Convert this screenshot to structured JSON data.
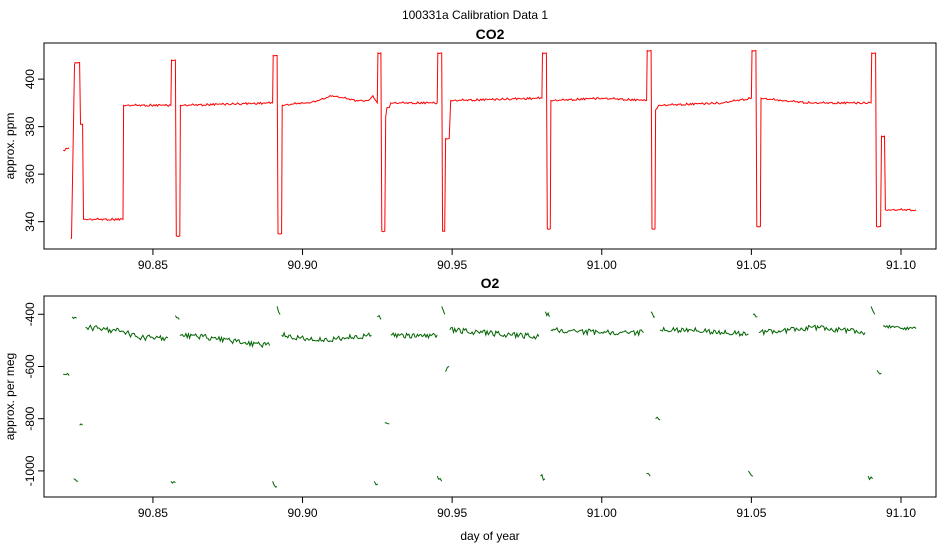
{
  "figure_title": "100331a   Calibration Data 1",
  "chart_data": [
    {
      "type": "line",
      "title": "CO2",
      "xlabel": "",
      "ylabel": "approx. ppm",
      "xlim": [
        90.8136,
        91.1117
      ],
      "ylim": [
        328.5,
        415.2
      ],
      "x_ticks": [
        90.85,
        90.9,
        90.95,
        91.0,
        91.05,
        91.1
      ],
      "x_tick_labels": [
        "90.85",
        "90.90",
        "90.95",
        "91.00",
        "91.05",
        "91.10"
      ],
      "y_ticks": [
        340,
        360,
        380,
        400
      ],
      "y_tick_labels": [
        "340",
        "360",
        "380",
        "400"
      ],
      "series_color": "#ff0000",
      "grid": false,
      "series": [
        {
          "segments": [
            {
              "x": [
                90.82,
                90.822
              ],
              "y": [
                370,
                371
              ]
            },
            {
              "x": [
                90.8225,
                90.8228,
                90.8238,
                90.824,
                90.8255,
                90.8258,
                90.8265,
                90.8268,
                90.8272,
                90.8275,
                90.84,
                90.8402,
                90.856,
                90.8562,
                90.8575,
                90.8578,
                90.859,
                90.8592,
                90.89,
                90.8902,
                90.8915,
                90.8918,
                90.893,
                90.8932,
                90.9,
                90.902,
                90.905,
                90.91,
                90.918,
                90.922,
                90.9235,
                90.925,
                90.9252,
                90.9262,
                90.9265,
                90.9275,
                90.9278,
                90.9282,
                90.929,
                90.9295,
                90.945,
                90.9452,
                90.9465,
                90.9468,
                90.9475,
                90.9478,
                90.949,
                90.9495,
                90.98,
                90.9802,
                90.9815,
                90.9818,
                90.9828,
                90.983,
                91.0,
                91.015,
                91.0152,
                91.0165,
                91.0168,
                91.0178,
                91.018,
                91.019,
                91.0195,
                91.04,
                91.05,
                91.0502,
                91.0515,
                91.0518,
                91.053,
                91.0532,
                91.06,
                91.07,
                91.07,
                91.09,
                91.0902,
                91.0915,
                91.0918,
                91.0932,
                91.0935,
                91.0945,
                91.0948,
                91.096,
                91.105
              ],
              "y": [
                333,
                333,
                406,
                407,
                407,
                381,
                381,
                341,
                341,
                341,
                341,
                389,
                389,
                408,
                408,
                334,
                334,
                389,
                390,
                410,
                410,
                335,
                335,
                389,
                390,
                390,
                391,
                393,
                391,
                391,
                393,
                390,
                411,
                411,
                336,
                336,
                384,
                388,
                388,
                390,
                390,
                411,
                411,
                336,
                336,
                375,
                375,
                391,
                392,
                411,
                411,
                337,
                337,
                391,
                392,
                391,
                412,
                412,
                337,
                337,
                387,
                389,
                389,
                390,
                392,
                412,
                412,
                338,
                338,
                392,
                391,
                390,
                390,
                390,
                411,
                411,
                338,
                338,
                376,
                376,
                345,
                345,
                345
              ]
            }
          ]
        }
      ]
    },
    {
      "type": "line",
      "title": "O2",
      "xlabel": "day of year",
      "ylabel": "approx. per meg",
      "xlim": [
        90.8136,
        91.1117
      ],
      "ylim": [
        -1100,
        -330
      ],
      "x_ticks": [
        90.85,
        90.9,
        90.95,
        91.0,
        91.05,
        91.1
      ],
      "x_tick_labels": [
        "90.85",
        "90.90",
        "90.95",
        "91.00",
        "91.05",
        "91.10"
      ],
      "y_ticks": [
        -1000,
        -800,
        -600,
        -400
      ],
      "y_tick_labels": [
        "-1000",
        "-800",
        "-600",
        "-400"
      ],
      "series_color": "#006400",
      "grid": false,
      "series": [
        {
          "segments": [
            {
              "x": [
                90.82,
                90.822
              ],
              "y": [
                -630,
                -635
              ]
            },
            {
              "x": [
                90.823,
                90.8245
              ],
              "y": [
                -410,
                -415
              ]
            },
            {
              "x": [
                90.8235,
                90.825
              ],
              "y": [
                -1030,
                -1040
              ]
            },
            {
              "x": [
                90.8255,
                90.8265
              ],
              "y": [
                -825,
                -825
              ]
            },
            {
              "x": [
                90.8275,
                90.84,
                90.845,
                90.855
              ],
              "y": [
                -450,
                -465,
                -490,
                -490
              ]
            },
            {
              "x": [
                90.856,
                90.8575
              ],
              "y": [
                -1040,
                -1045
              ]
            },
            {
              "x": [
                90.8575,
                90.8588
              ],
              "y": [
                -405,
                -420
              ]
            },
            {
              "x": [
                90.859,
                90.87,
                90.88,
                90.889
              ],
              "y": [
                -480,
                -490,
                -510,
                -520
              ]
            },
            {
              "x": [
                90.89,
                90.8915
              ],
              "y": [
                -1040,
                -1060
              ]
            },
            {
              "x": [
                90.8915,
                90.8925
              ],
              "y": [
                -370,
                -400
              ]
            },
            {
              "x": [
                90.893,
                90.905,
                90.915,
                90.923
              ],
              "y": [
                -480,
                -500,
                -490,
                -480
              ]
            },
            {
              "x": [
                90.924,
                90.9252
              ],
              "y": [
                -1040,
                -1050
              ]
            },
            {
              "x": [
                90.925,
                90.9262
              ],
              "y": [
                -410,
                -420
              ]
            },
            {
              "x": [
                90.9275,
                90.929
              ],
              "y": [
                -815,
                -820
              ]
            },
            {
              "x": [
                90.9295,
                90.94,
                90.945
              ],
              "y": [
                -480,
                -485,
                -480
              ]
            },
            {
              "x": [
                90.945,
                90.9465
              ],
              "y": [
                -1020,
                -1040
              ]
            },
            {
              "x": [
                90.9465,
                90.9475
              ],
              "y": [
                -370,
                -400
              ]
            },
            {
              "x": [
                90.9478,
                90.949
              ],
              "y": [
                -620,
                -600
              ]
            },
            {
              "x": [
                90.9492,
                90.96,
                90.97,
                90.979
              ],
              "y": [
                -460,
                -470,
                -480,
                -485
              ]
            },
            {
              "x": [
                90.9795,
                90.981
              ],
              "y": [
                -1020,
                -1030
              ]
            },
            {
              "x": [
                90.9812,
                90.9825
              ],
              "y": [
                -390,
                -410
              ]
            },
            {
              "x": [
                90.983,
                91.0,
                91.014
              ],
              "y": [
                -460,
                -470,
                -470
              ]
            },
            {
              "x": [
                91.015,
                91.0162
              ],
              "y": [
                -1010,
                -1020
              ]
            },
            {
              "x": [
                91.0165,
                91.0178
              ],
              "y": [
                -390,
                -410
              ]
            },
            {
              "x": [
                91.018,
                91.0195
              ],
              "y": [
                -800,
                -805
              ]
            },
            {
              "x": [
                91.0195,
                91.03,
                91.04,
                91.049
              ],
              "y": [
                -460,
                -460,
                -470,
                -475
              ]
            },
            {
              "x": [
                91.049,
                91.0505
              ],
              "y": [
                -1000,
                -1020
              ]
            },
            {
              "x": [
                91.0505,
                91.052
              ],
              "y": [
                -400,
                -410
              ]
            },
            {
              "x": [
                91.0525,
                91.06,
                91.07,
                91.08,
                91.088
              ],
              "y": [
                -470,
                -465,
                -450,
                -460,
                -470
              ]
            },
            {
              "x": [
                91.089,
                91.0905
              ],
              "y": [
                -1020,
                -1030
              ]
            },
            {
              "x": [
                91.09,
                91.0912
              ],
              "y": [
                -370,
                -400
              ]
            },
            {
              "x": [
                91.092,
                91.0935
              ],
              "y": [
                -615,
                -625
              ]
            },
            {
              "x": [
                91.094,
                91.1,
                91.105
              ],
              "y": [
                -445,
                -455,
                -455
              ]
            }
          ]
        }
      ]
    }
  ]
}
